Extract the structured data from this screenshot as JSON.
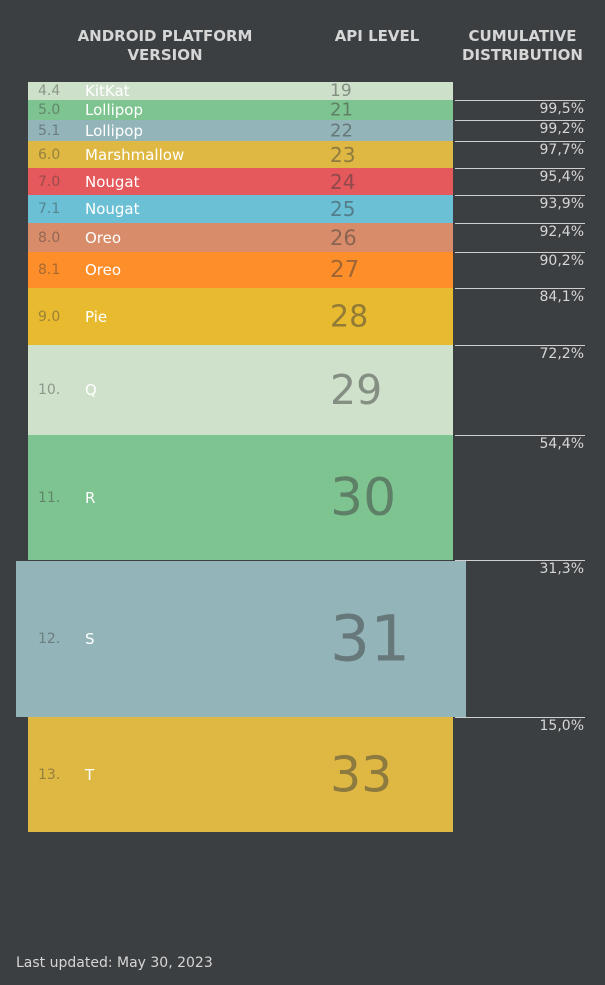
{
  "header": {
    "columns": [
      "ANDROID PLATFORM VERSION",
      "API LEVEL",
      "CUMULATIVE DISTRIBUTION"
    ]
  },
  "rows": [
    {
      "version": "4.4",
      "name": "KitKat",
      "api": "19",
      "color": "#cde0c9"
    },
    {
      "version": "5.0",
      "name": "Lollipop",
      "api": "21",
      "cumulative": "99,5%",
      "color": "#7ec490"
    },
    {
      "version": "5.1",
      "name": "Lollipop",
      "api": "22",
      "cumulative": "99,2%",
      "color": "#93b4b8"
    },
    {
      "version": "6.0",
      "name": "Marshmallow",
      "api": "23",
      "cumulative": "97,7%",
      "color": "#dfb843"
    },
    {
      "version": "7.0",
      "name": "Nougat",
      "api": "24",
      "cumulative": "95,4%",
      "color": "#e5585b"
    },
    {
      "version": "7.1",
      "name": "Nougat",
      "api": "25",
      "cumulative": "93,9%",
      "color": "#6bc0d6"
    },
    {
      "version": "8.0",
      "name": "Oreo",
      "api": "26",
      "cumulative": "92,4%",
      "color": "#d98c6a"
    },
    {
      "version": "8.1",
      "name": "Oreo",
      "api": "27",
      "cumulative": "90,2%",
      "color": "#fe8e2a"
    },
    {
      "version": "9.0",
      "name": "Pie",
      "api": "28",
      "cumulative": "84,1%",
      "color": "#e8ba30"
    },
    {
      "version": "10.",
      "name": "Q",
      "api": "29",
      "cumulative": "72,2%",
      "color": "#cfe1ca"
    },
    {
      "version": "11.",
      "name": "R",
      "api": "30",
      "cumulative": "54,4%",
      "color": "#7ec490"
    },
    {
      "version": "12.",
      "name": "S",
      "api": "31",
      "cumulative": "31,3%",
      "color": "#93b4b8",
      "selected": true
    },
    {
      "version": "13.",
      "name": "T",
      "api": "33",
      "cumulative": "15,0%",
      "color": "#dfb843"
    }
  ],
  "footer": "Last updated: May 30, 2023"
}
